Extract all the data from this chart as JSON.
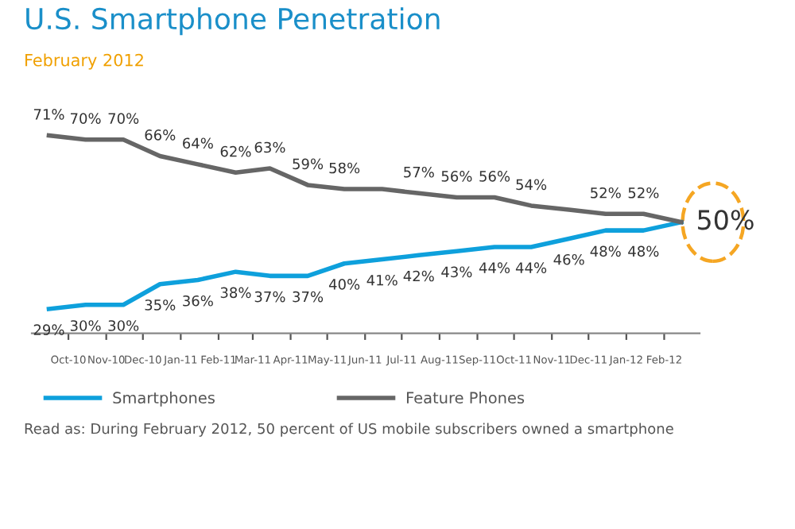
{
  "chart_data": {
    "type": "line",
    "title": "U.S. Smartphone Penetration",
    "subtitle": "February 2012",
    "x": [
      "2010-09-15",
      "2010-10-15",
      "2010-11-15",
      "2010-12-15",
      "2011-01-15",
      "2011-02-15",
      "2011-03-15",
      "2011-04-15",
      "2011-05-15",
      "2011-06-15",
      "2011-07-15",
      "2011-08-15",
      "2011-09-15",
      "2011-10-15",
      "2011-11-15",
      "2011-12-15",
      "2012-01-15",
      "2012-02-15"
    ],
    "xlim": [
      "2010-09-01",
      "2012-03-01"
    ],
    "xticks": [
      {
        "value": "2010-10-01",
        "label": "Oct-10"
      },
      {
        "value": "2010-11-01",
        "label": "Nov-10"
      },
      {
        "value": "2010-12-01",
        "label": "Dec-10"
      },
      {
        "value": "2011-01-01",
        "label": "Jan-11"
      },
      {
        "value": "2011-02-01",
        "label": "Feb-11"
      },
      {
        "value": "2011-03-01",
        "label": "Mar-11"
      },
      {
        "value": "2011-04-01",
        "label": "Apr-11"
      },
      {
        "value": "2011-05-01",
        "label": "May-11"
      },
      {
        "value": "2011-06-01",
        "label": "Jun-11"
      },
      {
        "value": "2011-07-01",
        "label": "Jul-11"
      },
      {
        "value": "2011-08-01",
        "label": "Aug-11"
      },
      {
        "value": "2011-09-01",
        "label": "Sep-11"
      },
      {
        "value": "2011-10-01",
        "label": "Oct-11"
      },
      {
        "value": "2011-11-01",
        "label": "Nov-11"
      },
      {
        "value": "2011-12-01",
        "label": "Dec-11"
      },
      {
        "value": "2012-01-01",
        "label": "Jan-12"
      },
      {
        "value": "2012-02-01",
        "label": "Feb-12"
      }
    ],
    "series": [
      {
        "name": "Smartphones",
        "color": "#0ea0dc",
        "values": [
          29,
          30,
          30,
          35,
          36,
          38,
          37,
          37,
          40,
          41,
          42,
          43,
          44,
          44,
          46,
          48,
          48,
          50
        ],
        "value_labels": [
          "29%",
          "30%",
          "30%",
          "35%",
          "36%",
          "38%",
          "37%",
          "37%",
          "40%",
          "41%",
          "42%",
          "43%",
          "44%",
          "44%",
          "46%",
          "48%",
          "48%",
          "50%"
        ]
      },
      {
        "name": "Feature Phones",
        "color": "#666666",
        "values": [
          71,
          70,
          70,
          66,
          64,
          62,
          63,
          59,
          58,
          58,
          57,
          56,
          56,
          54,
          53,
          52,
          52,
          50
        ],
        "value_labels": [
          "71%",
          "70%",
          "70%",
          "66%",
          "64%",
          "62%",
          "63%",
          "59%",
          "58%",
          null,
          "57%",
          "56%",
          "56%",
          "54%",
          null,
          "52%",
          "52%",
          null
        ]
      }
    ],
    "grid": false,
    "legend": "bottom",
    "marker": "none",
    "line_style": "solid",
    "tick_labels": "x",
    "annotations": [
      "Read as: During February 2012, 50 percent of US mobile subscribers owned a smartphone"
    ]
  }
}
